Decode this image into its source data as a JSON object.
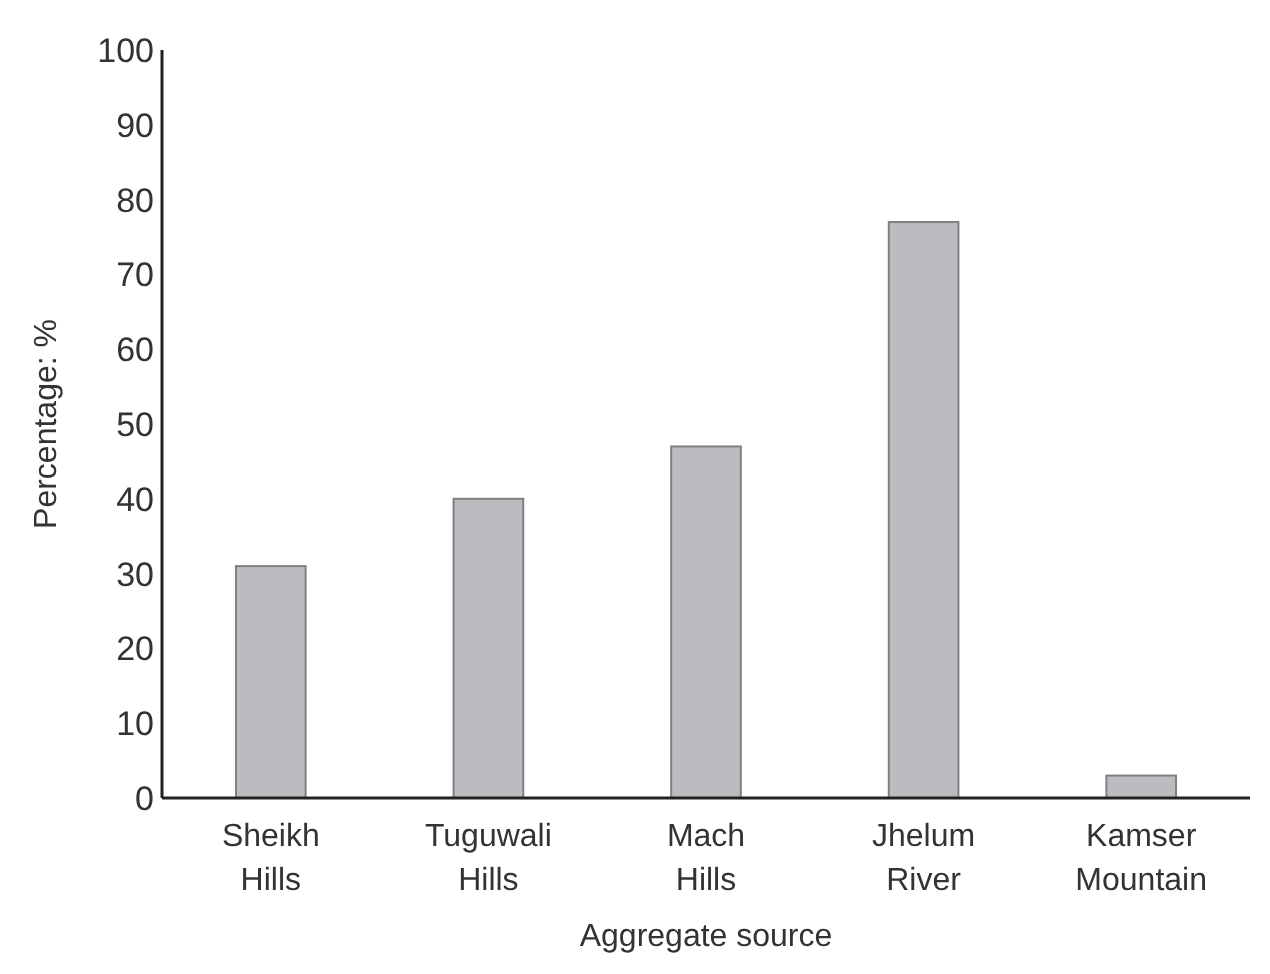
{
  "chart_data": {
    "type": "bar",
    "xlabel": "Aggregate source",
    "ylabel": "Percentage: %",
    "categories": [
      "Sheikh Hills",
      "Tuguwali Hills",
      "Mach Hills",
      "Jhelum River",
      "Kamser Mountain"
    ],
    "values": [
      31,
      40,
      47,
      77,
      3
    ],
    "color": "#bbbcc0",
    "ylim": [
      0,
      100
    ],
    "yticks": [
      0,
      10,
      20,
      30,
      40,
      50,
      60,
      70,
      80,
      90,
      100
    ],
    "grid": false
  }
}
